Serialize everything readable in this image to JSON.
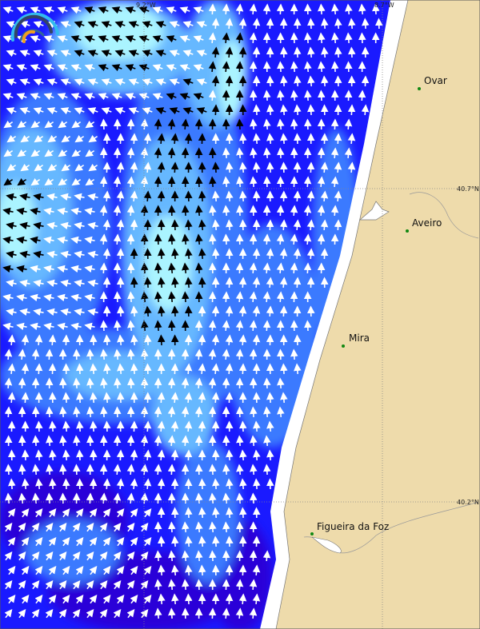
{
  "map": {
    "grid": {
      "lon_labels": [
        "9.2°W",
        "8.7°W"
      ],
      "lat_labels": [
        "40.7°N",
        "40.2°N"
      ]
    },
    "cities": [
      {
        "name": "Ovar"
      },
      {
        "name": "Aveiro"
      },
      {
        "name": "Mira"
      },
      {
        "name": "Figueira da Foz"
      }
    ],
    "colors": {
      "ocean_deep": "#1a1aff",
      "ocean_dark": "#2a00d8",
      "ocean_mid": "#3a7aff",
      "ocean_light": "#66b8ff",
      "ocean_pale": "#aaf4ff",
      "land": "#eedbab",
      "city_dot": "#118811"
    },
    "logo": "arc-logo"
  }
}
